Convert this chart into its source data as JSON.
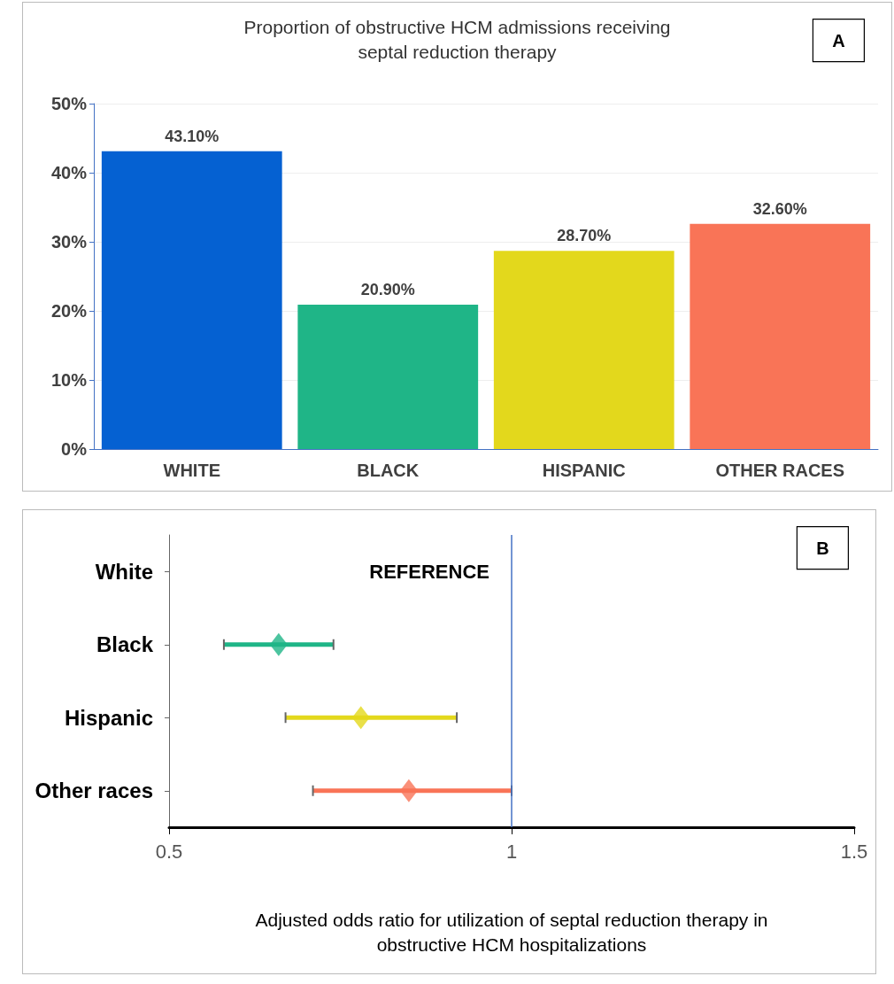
{
  "chart_data": [
    {
      "type": "bar",
      "title": "Proportion of obstructive HCM admissions receiving\nseptal reduction therapy",
      "categories": [
        "WHITE",
        "BLACK",
        "HISPANIC",
        "OTHER RACES"
      ],
      "values": [
        43.1,
        20.9,
        28.7,
        32.6
      ],
      "colors": [
        "#0561d2",
        "#1fb587",
        "#e3d81c",
        "#f97457"
      ],
      "value_labels": [
        "43.10%",
        "20.90%",
        "28.70%",
        "32.60%"
      ],
      "ylim": [
        0,
        50
      ],
      "yticks": [
        {
          "value": 0,
          "label": "0%"
        },
        {
          "value": 10,
          "label": "10%"
        },
        {
          "value": 20,
          "label": "20%"
        },
        {
          "value": 30,
          "label": "30%"
        },
        {
          "value": 40,
          "label": "40%"
        },
        {
          "value": 50,
          "label": "50%"
        }
      ],
      "grid": "y",
      "annotations": [
        "A"
      ]
    },
    {
      "type": "scatter",
      "orientation": "horizontal",
      "xlabel": "Adjusted odds ratio for utilization of septal reduction therapy in\nobstructive HCM hospitalizations",
      "categories": [
        "White",
        "Black",
        "Hispanic",
        "Other races"
      ],
      "values": [
        null,
        0.66,
        0.78,
        0.85
      ],
      "errors": [
        null,
        [
          0.58,
          0.74
        ],
        [
          0.67,
          0.92
        ],
        [
          0.71,
          1.0
        ]
      ],
      "colors": [
        null,
        "#1fb587",
        "#e3d81c",
        "#f97457"
      ],
      "marker": "diamond",
      "xlim": [
        0.5,
        1.5
      ],
      "xticks": [
        0.5,
        1,
        1.5
      ],
      "grid": false,
      "ref_lines": [
        {
          "axis": "x",
          "value": 1,
          "color": "#4472c4"
        }
      ],
      "annotations": [
        "B",
        "REFERENCE"
      ]
    }
  ]
}
